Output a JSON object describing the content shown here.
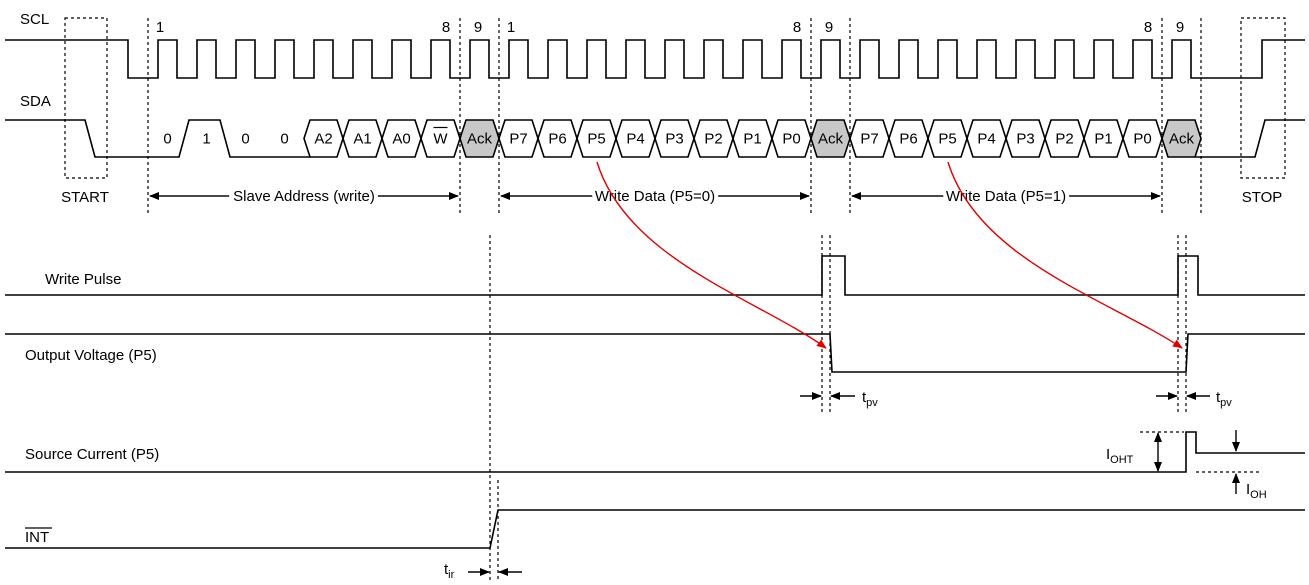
{
  "scl": {
    "label": "SCL",
    "clock_numbers": [
      "1",
      "8",
      "9",
      "1",
      "8",
      "9",
      "8",
      "9"
    ]
  },
  "sda": {
    "label": "SDA",
    "bits": [
      "0",
      "1",
      "0",
      "0",
      "A2",
      "A1",
      "A0",
      "W",
      "Ack",
      "P7",
      "P6",
      "P5",
      "P4",
      "P3",
      "P2",
      "P1",
      "P0",
      "Ack",
      "P7",
      "P6",
      "P5",
      "P4",
      "P3",
      "P2",
      "P1",
      "P0",
      "Ack"
    ]
  },
  "start": "START",
  "stop": "STOP",
  "ranges": [
    "Slave Address (write)",
    "Write Data (P5=0)",
    "Write Data (P5=1)"
  ],
  "signals": {
    "write_pulse": "Write Pulse",
    "output_voltage": "Output Voltage (P5)",
    "source_current": "Source Current (P5)",
    "int": "INT"
  },
  "timing": {
    "tpv": [
      {
        "main": "t",
        "sub": "pv"
      },
      {
        "main": "t",
        "sub": "pv"
      }
    ],
    "ioht": {
      "main": "I",
      "sub": "OHT"
    },
    "ioh": {
      "main": "I",
      "sub": "OH"
    },
    "tir": {
      "main": "t",
      "sub": "ir"
    }
  }
}
